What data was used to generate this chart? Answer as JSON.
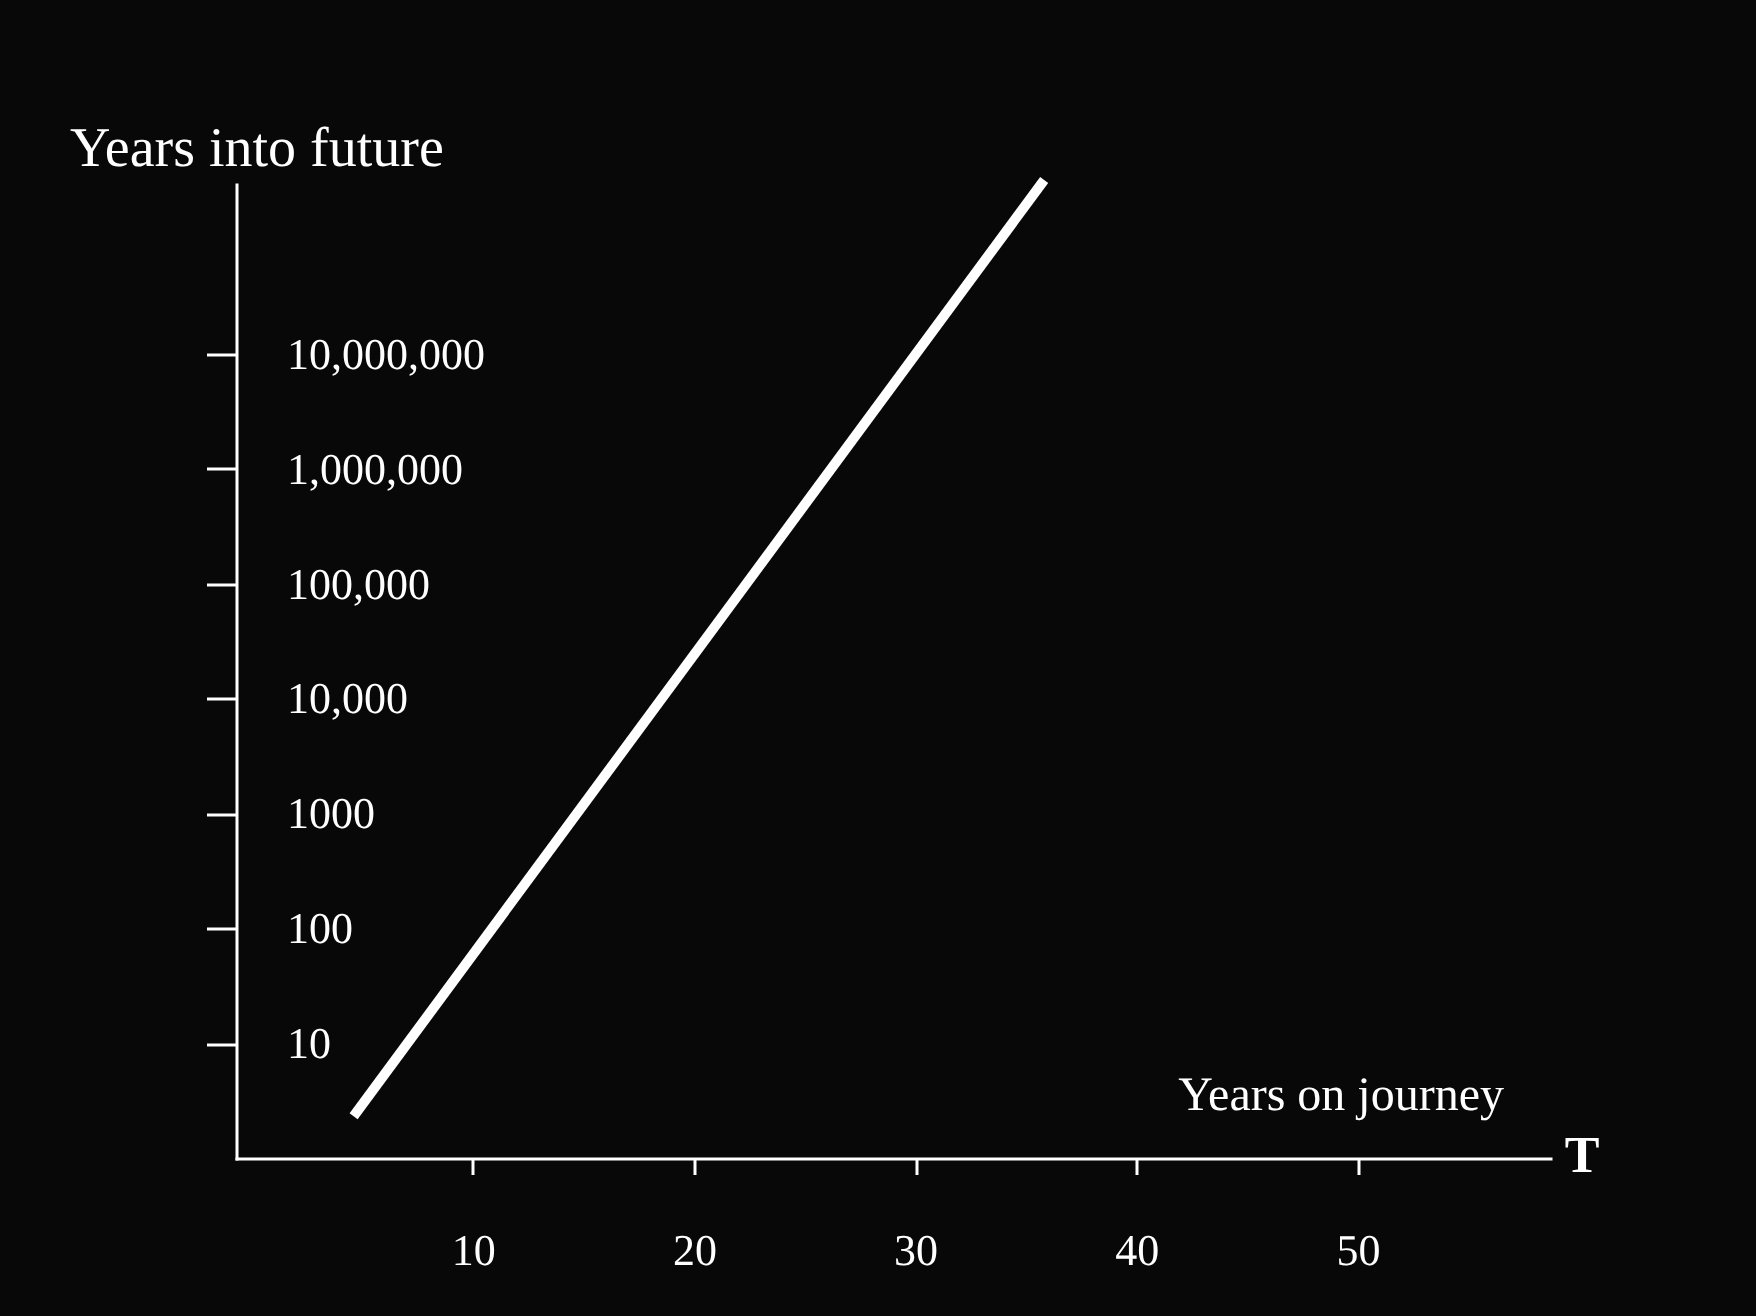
{
  "chart_data": {
    "type": "line",
    "xlabel": "Years on journey",
    "ylabel": "Years into future",
    "annotations": [
      "T"
    ],
    "x": [
      4.75,
      35.7
    ],
    "series": [
      {
        "color": "#ffffff",
        "values": [
          2.5,
          300000000
        ]
      }
    ],
    "log": "y",
    "xlim": [
      -0.7,
      58.7
    ],
    "xticks": [
      10,
      20,
      30,
      40,
      50
    ],
    "ylim": [
      1,
      300000000
    ],
    "yticks": [
      10,
      100,
      1000,
      {
        "value": 10000,
        "label": "10,000"
      },
      {
        "value": 100000,
        "label": "100,000"
      },
      {
        "value": 1000000,
        "label": "1,000,000"
      },
      {
        "value": 10000000,
        "label": "10,000,000"
      }
    ],
    "grid": false,
    "marker": "none",
    "line_style": "solid"
  }
}
